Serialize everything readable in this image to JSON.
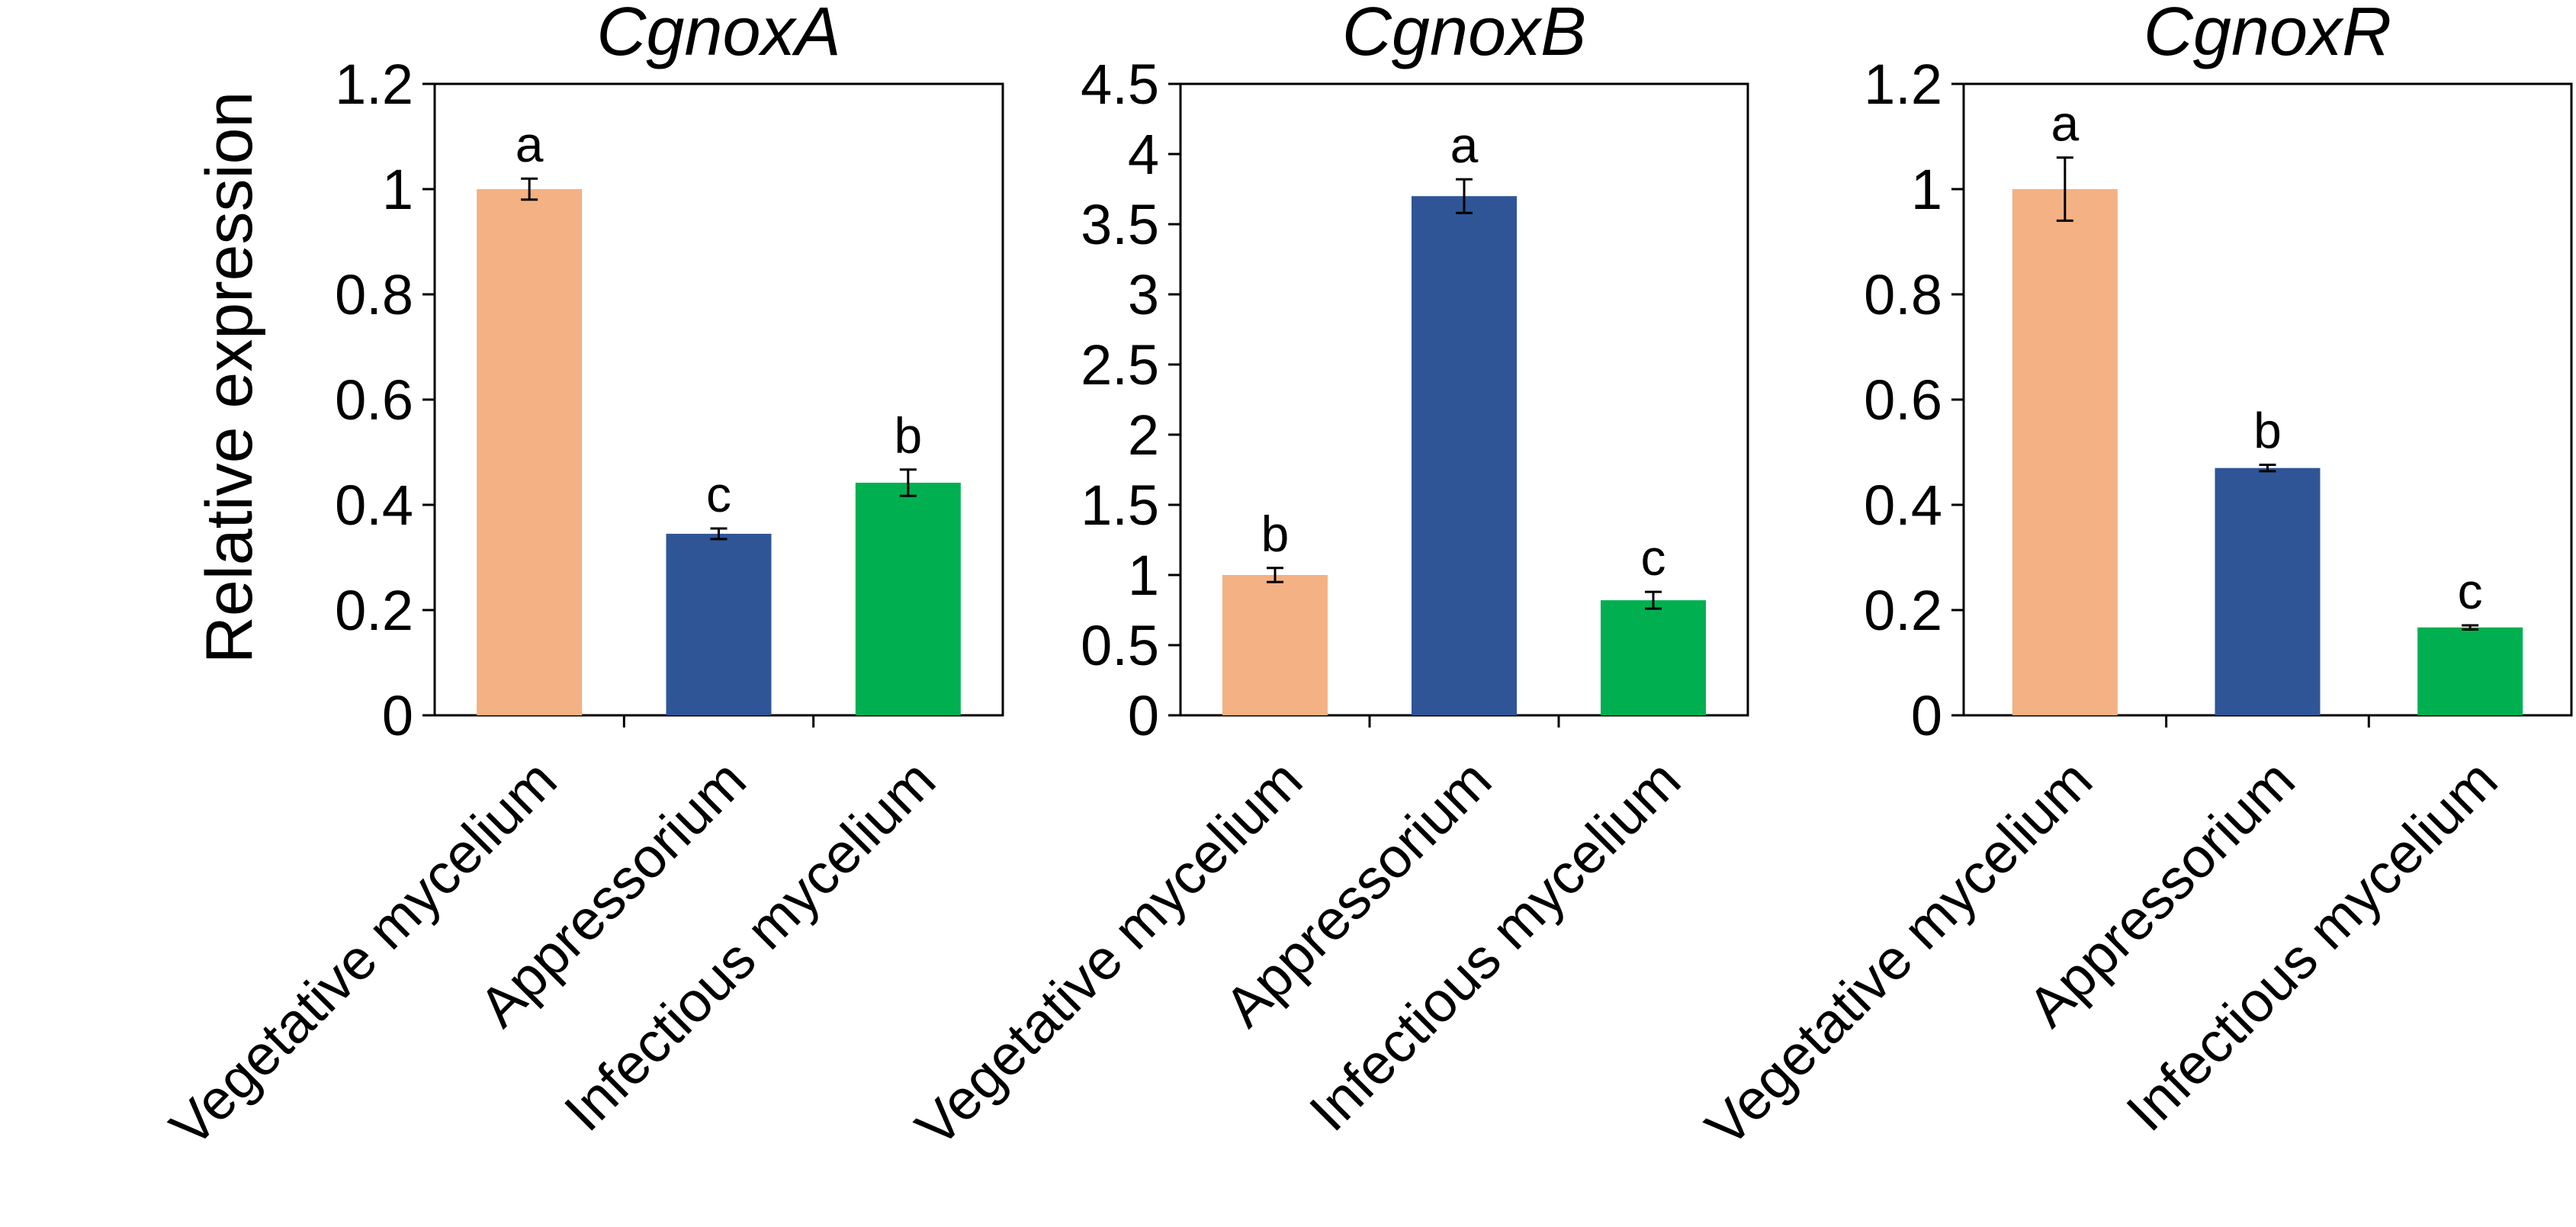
{
  "figure": {
    "ylabel": "Relative expression"
  },
  "colors": {
    "vegetative": "#F4B183",
    "appressorium": "#2F5597",
    "infectious": "#00B050",
    "axis": "#000000"
  },
  "chart_data": [
    {
      "type": "bar",
      "title": "CgnoxA",
      "categories": [
        "Vegetative mycelium",
        "Appressorium",
        "Infectious mycelium"
      ],
      "values": [
        1.0,
        0.345,
        0.442
      ],
      "errors": [
        0.02,
        0.01,
        0.025
      ],
      "letters": [
        "a",
        "c",
        "b"
      ],
      "ylabel": "Relative expression",
      "ylim": [
        0,
        1.2
      ],
      "yticks": [
        0,
        0.2,
        0.4,
        0.6,
        0.8,
        1,
        1.2
      ],
      "ytick_labels": [
        "0",
        "0.2",
        "0.4",
        "0.6",
        "0.8",
        "1",
        "1.2"
      ]
    },
    {
      "type": "bar",
      "title": "CgnoxB",
      "categories": [
        "Vegetative mycelium",
        "Appressorium",
        "Infectious mycelium"
      ],
      "values": [
        1.0,
        3.7,
        0.82
      ],
      "errors": [
        0.05,
        0.12,
        0.06
      ],
      "letters": [
        "b",
        "a",
        "c"
      ],
      "ylabel": "",
      "ylim": [
        0,
        4.5
      ],
      "yticks": [
        0,
        0.5,
        1,
        1.5,
        2,
        2.5,
        3,
        3.5,
        4,
        4.5
      ],
      "ytick_labels": [
        "0",
        "0.5",
        "1",
        "1.5",
        "2",
        "2.5",
        "3",
        "3.5",
        "4",
        "4.5"
      ]
    },
    {
      "type": "bar",
      "title": "CgnoxR",
      "categories": [
        "Vegetative mycelium",
        "Appressorium",
        "Infectious mycelium"
      ],
      "values": [
        1.0,
        0.47,
        0.167
      ],
      "errors": [
        0.06,
        0.006,
        0.004
      ],
      "letters": [
        "a",
        "b",
        "c"
      ],
      "ylabel": "",
      "ylim": [
        0,
        1.2
      ],
      "yticks": [
        0,
        0.2,
        0.4,
        0.6,
        0.8,
        1,
        1.2
      ],
      "ytick_labels": [
        "0",
        "0.2",
        "0.4",
        "0.6",
        "0.8",
        "1",
        "1.2"
      ]
    }
  ]
}
